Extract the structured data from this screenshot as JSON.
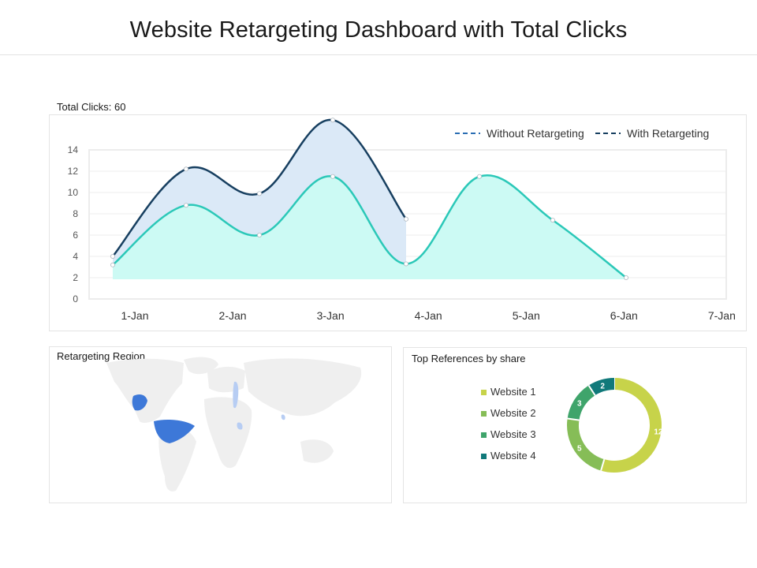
{
  "page": {
    "title": "Website Retargeting Dashboard with Total Clicks"
  },
  "line_panel": {
    "label": "Total Clicks: 60"
  },
  "map_panel": {
    "label": "Retargeting Region",
    "highlight_color": "#3d78d8",
    "land_color": "#efefef"
  },
  "donut_panel": {
    "label": "Top References by share"
  },
  "chart_data": [
    {
      "type": "area",
      "title": "Total Clicks: 60",
      "categories": [
        "1-Jan",
        "2-Jan",
        "3-Jan",
        "4-Jan",
        "5-Jan",
        "6-Jan",
        "7-Jan"
      ],
      "ylim": [
        0,
        14
      ],
      "yticks": [
        0,
        2,
        4,
        6,
        8,
        10,
        12,
        14
      ],
      "grid": true,
      "legend": "top-right",
      "series": [
        {
          "name": "Without Retargeting",
          "color": "#2bc8b8",
          "fill": "#ccfaf4",
          "x": [
            1,
            2,
            3,
            4,
            5,
            6,
            7,
            8
          ],
          "values": [
            3.2,
            8.8,
            6.0,
            11.5,
            3.3,
            11.5,
            7.4,
            2.0
          ]
        },
        {
          "name": "With Retargeting",
          "color": "#173f60",
          "fill": "#dbe9f7",
          "x": [
            1,
            2,
            3,
            4,
            5
          ],
          "values": [
            4.0,
            12.2,
            9.9,
            16.8,
            7.5
          ]
        }
      ]
    },
    {
      "type": "pie",
      "title": "Top References by share",
      "legend": "left",
      "labels": [
        "Website 1",
        "Website 2",
        "Website 3",
        "Website 4"
      ],
      "values": [
        12,
        5,
        3,
        2
      ],
      "colors": [
        "#c7d34a",
        "#86bd57",
        "#3fa46b",
        "#10797a"
      ]
    }
  ]
}
